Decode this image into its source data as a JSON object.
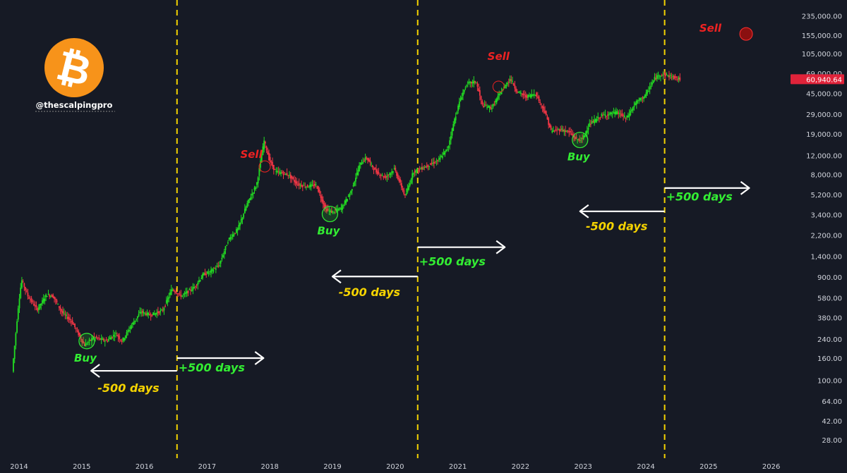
{
  "brand": {
    "handle": "@thescalpingpro",
    "logo_glyph": "₿",
    "logo_color": "#f7931a"
  },
  "colors": {
    "background": "#161a25",
    "up": "#22dd22",
    "down": "#f23645",
    "halving_line": "#f5d300",
    "buy": "#33ee33",
    "sell": "#ee2222",
    "minus_days": "#f5d300",
    "plus_days": "#33ee33",
    "arrow": "#ffffff"
  },
  "chart_data": {
    "type": "candlestick",
    "scale": "log",
    "ylim": [
      20,
      300000
    ],
    "xlim": [
      2013.9,
      2026.4
    ],
    "y_ticks": [
      {
        "v": 235000,
        "label": "235,000.00"
      },
      {
        "v": 155000,
        "label": "155,000.00"
      },
      {
        "v": 105000,
        "label": "105,000.00"
      },
      {
        "v": 69000,
        "label": "69,000.00"
      },
      {
        "v": 45000,
        "label": "45,000.00"
      },
      {
        "v": 29000,
        "label": "29,000.00"
      },
      {
        "v": 19000,
        "label": "19,000.00"
      },
      {
        "v": 12000,
        "label": "12,000.00"
      },
      {
        "v": 8000,
        "label": "8,000.00"
      },
      {
        "v": 5200,
        "label": "5,200.00"
      },
      {
        "v": 3400,
        "label": "3,400.00"
      },
      {
        "v": 2200,
        "label": "2,200.00"
      },
      {
        "v": 1400,
        "label": "1,400.00"
      },
      {
        "v": 900,
        "label": "900.00"
      },
      {
        "v": 580,
        "label": "580.00"
      },
      {
        "v": 380,
        "label": "380.00"
      },
      {
        "v": 240,
        "label": "240.00"
      },
      {
        "v": 160,
        "label": "160.00"
      },
      {
        "v": 100,
        "label": "100.00"
      },
      {
        "v": 64,
        "label": "64.00"
      },
      {
        "v": 42,
        "label": "42.00"
      },
      {
        "v": 28,
        "label": "28.00"
      }
    ],
    "x_ticks": [
      {
        "v": 2014,
        "label": "2014"
      },
      {
        "v": 2015,
        "label": "2015"
      },
      {
        "v": 2016,
        "label": "2016"
      },
      {
        "v": 2017,
        "label": "2017"
      },
      {
        "v": 2018,
        "label": "2018"
      },
      {
        "v": 2019,
        "label": "2019"
      },
      {
        "v": 2020,
        "label": "2020"
      },
      {
        "v": 2021,
        "label": "2021"
      },
      {
        "v": 2022,
        "label": "2022"
      },
      {
        "v": 2023,
        "label": "2023"
      },
      {
        "v": 2024,
        "label": "2024"
      },
      {
        "v": 2025,
        "label": "2025"
      },
      {
        "v": 2026,
        "label": "2026"
      }
    ],
    "price_tag": {
      "v": 60940.64,
      "label": "60,940.64"
    },
    "halvings": [
      2016.52,
      2020.36,
      2024.3
    ],
    "price_path": [
      [
        2013.9,
        120
      ],
      [
        2014.0,
        500
      ],
      [
        2014.05,
        850
      ],
      [
        2014.15,
        600
      ],
      [
        2014.3,
        450
      ],
      [
        2014.45,
        620
      ],
      [
        2014.55,
        600
      ],
      [
        2014.7,
        420
      ],
      [
        2014.85,
        350
      ],
      [
        2015.0,
        240
      ],
      [
        2015.05,
        210
      ],
      [
        2015.2,
        250
      ],
      [
        2015.4,
        230
      ],
      [
        2015.55,
        270
      ],
      [
        2015.65,
        230
      ],
      [
        2015.8,
        320
      ],
      [
        2015.95,
        430
      ],
      [
        2016.1,
        400
      ],
      [
        2016.3,
        440
      ],
      [
        2016.45,
        700
      ],
      [
        2016.6,
        600
      ],
      [
        2016.8,
        720
      ],
      [
        2016.95,
        950
      ],
      [
        2017.05,
        1000
      ],
      [
        2017.2,
        1150
      ],
      [
        2017.35,
        2000
      ],
      [
        2017.5,
        2500
      ],
      [
        2017.65,
        4300
      ],
      [
        2017.8,
        6500
      ],
      [
        2017.92,
        16500
      ],
      [
        2018.0,
        11000
      ],
      [
        2018.1,
        8500
      ],
      [
        2018.3,
        8000
      ],
      [
        2018.45,
        6500
      ],
      [
        2018.6,
        6200
      ],
      [
        2018.75,
        6400
      ],
      [
        2018.9,
        3800
      ],
      [
        2019.0,
        3600
      ],
      [
        2019.15,
        3900
      ],
      [
        2019.3,
        5500
      ],
      [
        2019.45,
        10000
      ],
      [
        2019.55,
        11500
      ],
      [
        2019.7,
        8500
      ],
      [
        2019.85,
        7500
      ],
      [
        2020.0,
        9000
      ],
      [
        2020.17,
        5000
      ],
      [
        2020.3,
        8500
      ],
      [
        2020.5,
        9500
      ],
      [
        2020.7,
        10800
      ],
      [
        2020.85,
        14000
      ],
      [
        2020.95,
        25000
      ],
      [
        2021.05,
        40000
      ],
      [
        2021.15,
        55000
      ],
      [
        2021.3,
        58000
      ],
      [
        2021.4,
        35000
      ],
      [
        2021.55,
        33000
      ],
      [
        2021.7,
        47000
      ],
      [
        2021.85,
        62000
      ],
      [
        2021.95,
        47000
      ],
      [
        2022.1,
        42000
      ],
      [
        2022.25,
        45000
      ],
      [
        2022.4,
        30000
      ],
      [
        2022.5,
        20000
      ],
      [
        2022.65,
        21000
      ],
      [
        2022.8,
        19500
      ],
      [
        2022.9,
        16800
      ],
      [
        2023.0,
        17000
      ],
      [
        2023.1,
        23000
      ],
      [
        2023.3,
        28000
      ],
      [
        2023.55,
        30000
      ],
      [
        2023.7,
        26500
      ],
      [
        2023.85,
        37000
      ],
      [
        2024.0,
        43000
      ],
      [
        2024.15,
        62000
      ],
      [
        2024.25,
        68000
      ],
      [
        2024.4,
        65000
      ],
      [
        2024.5,
        62000
      ],
      [
        2024.55,
        60940
      ]
    ],
    "buy_markers": [
      {
        "x": 2015.08,
        "y": 230,
        "label": "Buy"
      },
      {
        "x": 2018.96,
        "y": 3450,
        "label": "Buy"
      },
      {
        "x": 2022.95,
        "y": 16700,
        "label": "Buy"
      }
    ],
    "sell_markers": [
      {
        "x": 2017.92,
        "y": 9500,
        "label": "Sell",
        "style": "ring"
      },
      {
        "x": 2021.65,
        "y": 52000,
        "label": "Sell",
        "style": "ring"
      },
      {
        "x": 2025.6,
        "y": 160000,
        "label": "Sell",
        "style": "filled"
      }
    ],
    "cycle_annotations": [
      {
        "label": "-500 days",
        "from": 2016.52,
        "to": 2015.15,
        "y": 122,
        "direction": "left",
        "text_y": 78
      },
      {
        "label": "+500 days",
        "from": 2016.52,
        "to": 2017.9,
        "y": 160,
        "direction": "right",
        "text_y": 120
      },
      {
        "label": "-500 days",
        "from": 2020.36,
        "to": 2019.0,
        "y": 910,
        "direction": "left",
        "text_y": 600
      },
      {
        "label": "+500 days",
        "from": 2020.36,
        "to": 2021.75,
        "y": 1700,
        "direction": "right",
        "text_y": 1150
      },
      {
        "label": "-500 days",
        "from": 2024.3,
        "to": 2022.95,
        "y": 3650,
        "direction": "left",
        "text_y": 2450
      },
      {
        "label": "+500 days",
        "from": 2024.3,
        "to": 2025.65,
        "y": 6000,
        "direction": "right",
        "text_y": 4600
      }
    ]
  }
}
